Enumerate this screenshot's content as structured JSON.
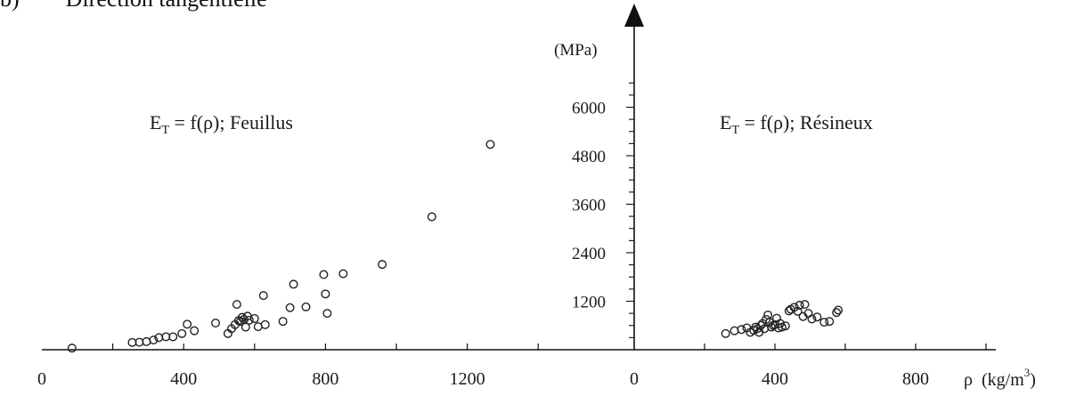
{
  "header": {
    "text": "b)        Direction tangentielle"
  },
  "chart_data": [
    {
      "type": "scatter",
      "title": "E T = f(ρ); Feuillus",
      "title_main": "E",
      "title_sub": "T",
      "title_rest": " = f(ρ); Feuillus",
      "xlabel": "",
      "ylabel": "(MPa)",
      "xlim": [
        0,
        1420
      ],
      "ylim": [
        0,
        6600
      ],
      "x_ticks": [
        0,
        400,
        800,
        1200
      ],
      "x_tick_labels": [
        "0",
        "400",
        "800",
        "1200"
      ],
      "y_ticks": [
        1200,
        2400,
        3600,
        4800,
        6000
      ],
      "y_tick_labels": [
        "1200",
        "2400",
        "3600",
        "4800",
        "6000"
      ],
      "grid": false,
      "marker": "open-circle",
      "points": [
        [
          85,
          40
        ],
        [
          255,
          180
        ],
        [
          275,
          185
        ],
        [
          295,
          200
        ],
        [
          315,
          240
        ],
        [
          330,
          300
        ],
        [
          350,
          320
        ],
        [
          370,
          320
        ],
        [
          395,
          400
        ],
        [
          410,
          630
        ],
        [
          430,
          470
        ],
        [
          490,
          660
        ],
        [
          525,
          400
        ],
        [
          535,
          520
        ],
        [
          545,
          620
        ],
        [
          550,
          1120
        ],
        [
          555,
          720
        ],
        [
          560,
          700
        ],
        [
          565,
          800
        ],
        [
          570,
          750
        ],
        [
          575,
          560
        ],
        [
          580,
          830
        ],
        [
          585,
          730
        ],
        [
          600,
          770
        ],
        [
          610,
          570
        ],
        [
          625,
          1340
        ],
        [
          630,
          620
        ],
        [
          680,
          700
        ],
        [
          700,
          1040
        ],
        [
          710,
          1620
        ],
        [
          745,
          1060
        ],
        [
          795,
          1860
        ],
        [
          800,
          1380
        ],
        [
          805,
          900
        ],
        [
          850,
          1880
        ],
        [
          960,
          2110
        ],
        [
          1100,
          3290
        ],
        [
          1265,
          5080
        ]
      ]
    },
    {
      "type": "scatter",
      "title": "E T = f(ρ); Résineux",
      "title_main": "E",
      "title_sub": "T",
      "title_rest": " = f(ρ); Résineux",
      "xlabel": "ρ (kg/m3)",
      "xlabel_rho": "ρ",
      "xlabel_unit": "(kg/m",
      "xlabel_exp": "3",
      "xlabel_close": ")",
      "ylabel": "",
      "xlim": [
        0,
        1060
      ],
      "ylim": [
        0,
        6600
      ],
      "x_ticks": [
        0,
        400,
        800
      ],
      "x_tick_labels": [
        "0",
        "400",
        "800"
      ],
      "grid": false,
      "marker": "open-circle",
      "points": [
        [
          260,
          400
        ],
        [
          285,
          470
        ],
        [
          305,
          500
        ],
        [
          320,
          540
        ],
        [
          330,
          430
        ],
        [
          340,
          480
        ],
        [
          345,
          560
        ],
        [
          350,
          520
        ],
        [
          355,
          430
        ],
        [
          360,
          600
        ],
        [
          365,
          650
        ],
        [
          370,
          520
        ],
        [
          375,
          750
        ],
        [
          380,
          860
        ],
        [
          385,
          680
        ],
        [
          390,
          560
        ],
        [
          395,
          600
        ],
        [
          400,
          620
        ],
        [
          405,
          780
        ],
        [
          410,
          540
        ],
        [
          415,
          650
        ],
        [
          420,
          560
        ],
        [
          430,
          590
        ],
        [
          440,
          960
        ],
        [
          445,
          1000
        ],
        [
          455,
          1050
        ],
        [
          465,
          950
        ],
        [
          470,
          1100
        ],
        [
          480,
          820
        ],
        [
          485,
          1120
        ],
        [
          495,
          900
        ],
        [
          505,
          760
        ],
        [
          520,
          810
        ],
        [
          540,
          680
        ],
        [
          555,
          700
        ],
        [
          575,
          920
        ],
        [
          580,
          980
        ]
      ]
    }
  ]
}
